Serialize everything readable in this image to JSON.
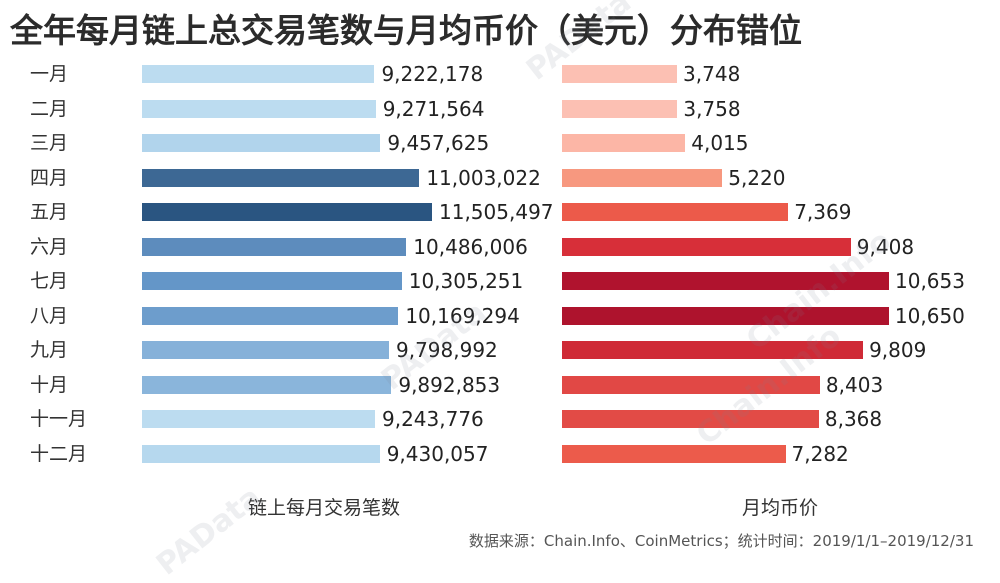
{
  "title": "全年每月链上总交易笔数与月均币价（美元）分布错位",
  "source": "数据来源：Chain.Info、CoinMetrics；统计时间：2019/1/1–2019/12/31",
  "watermarks": [
    "PAData",
    "Chain.Info",
    "PAData",
    "Chain.Info",
    "PAData"
  ],
  "chart_data": [
    {
      "type": "bar",
      "orientation": "horizontal",
      "xlabel": "链上每月交易笔数",
      "categories": [
        "一月",
        "二月",
        "三月",
        "四月",
        "五月",
        "六月",
        "七月",
        "八月",
        "九月",
        "十月",
        "十一月",
        "十二月"
      ],
      "values": [
        9222178,
        9271564,
        9457625,
        11003022,
        11505497,
        10486006,
        10305251,
        10169294,
        9798992,
        9892853,
        9243776,
        9430057
      ],
      "labels": [
        "9,222,178",
        "9,271,564",
        "9,457,625",
        "11,003,022",
        "11,505,497",
        "10,486,006",
        "10,305,251",
        "10,169,294",
        "9,798,992",
        "9,892,853",
        "9,243,776",
        "9,430,057"
      ],
      "colors": [
        "#bcdcf0",
        "#bcdcf0",
        "#b1d4ec",
        "#3d6894",
        "#2a5581",
        "#5d8cbd",
        "#6496c8",
        "#6d9dcc",
        "#86b1d9",
        "#8ab5db",
        "#bcdcf0",
        "#b6d8ee"
      ]
    },
    {
      "type": "bar",
      "orientation": "horizontal",
      "xlabel": "月均币价",
      "categories": [
        "一月",
        "二月",
        "三月",
        "四月",
        "五月",
        "六月",
        "七月",
        "八月",
        "九月",
        "十月",
        "十一月",
        "十二月"
      ],
      "values": [
        3748,
        3758,
        4015,
        5220,
        7369,
        9408,
        10653,
        10650,
        9809,
        8403,
        8368,
        7282
      ],
      "labels": [
        "3,748",
        "3,758",
        "4,015",
        "5,220",
        "7,369",
        "9,408",
        "10,653",
        "10,650",
        "9,809",
        "8,403",
        "8,368",
        "7,282"
      ],
      "colors": [
        "#fcc0b3",
        "#fcc0b3",
        "#fcb6a6",
        "#f7987f",
        "#ec5a4a",
        "#d72f39",
        "#b0132e",
        "#ae132d",
        "#cf2a36",
        "#e14845",
        "#e24b46",
        "#ec5b4b"
      ]
    }
  ]
}
